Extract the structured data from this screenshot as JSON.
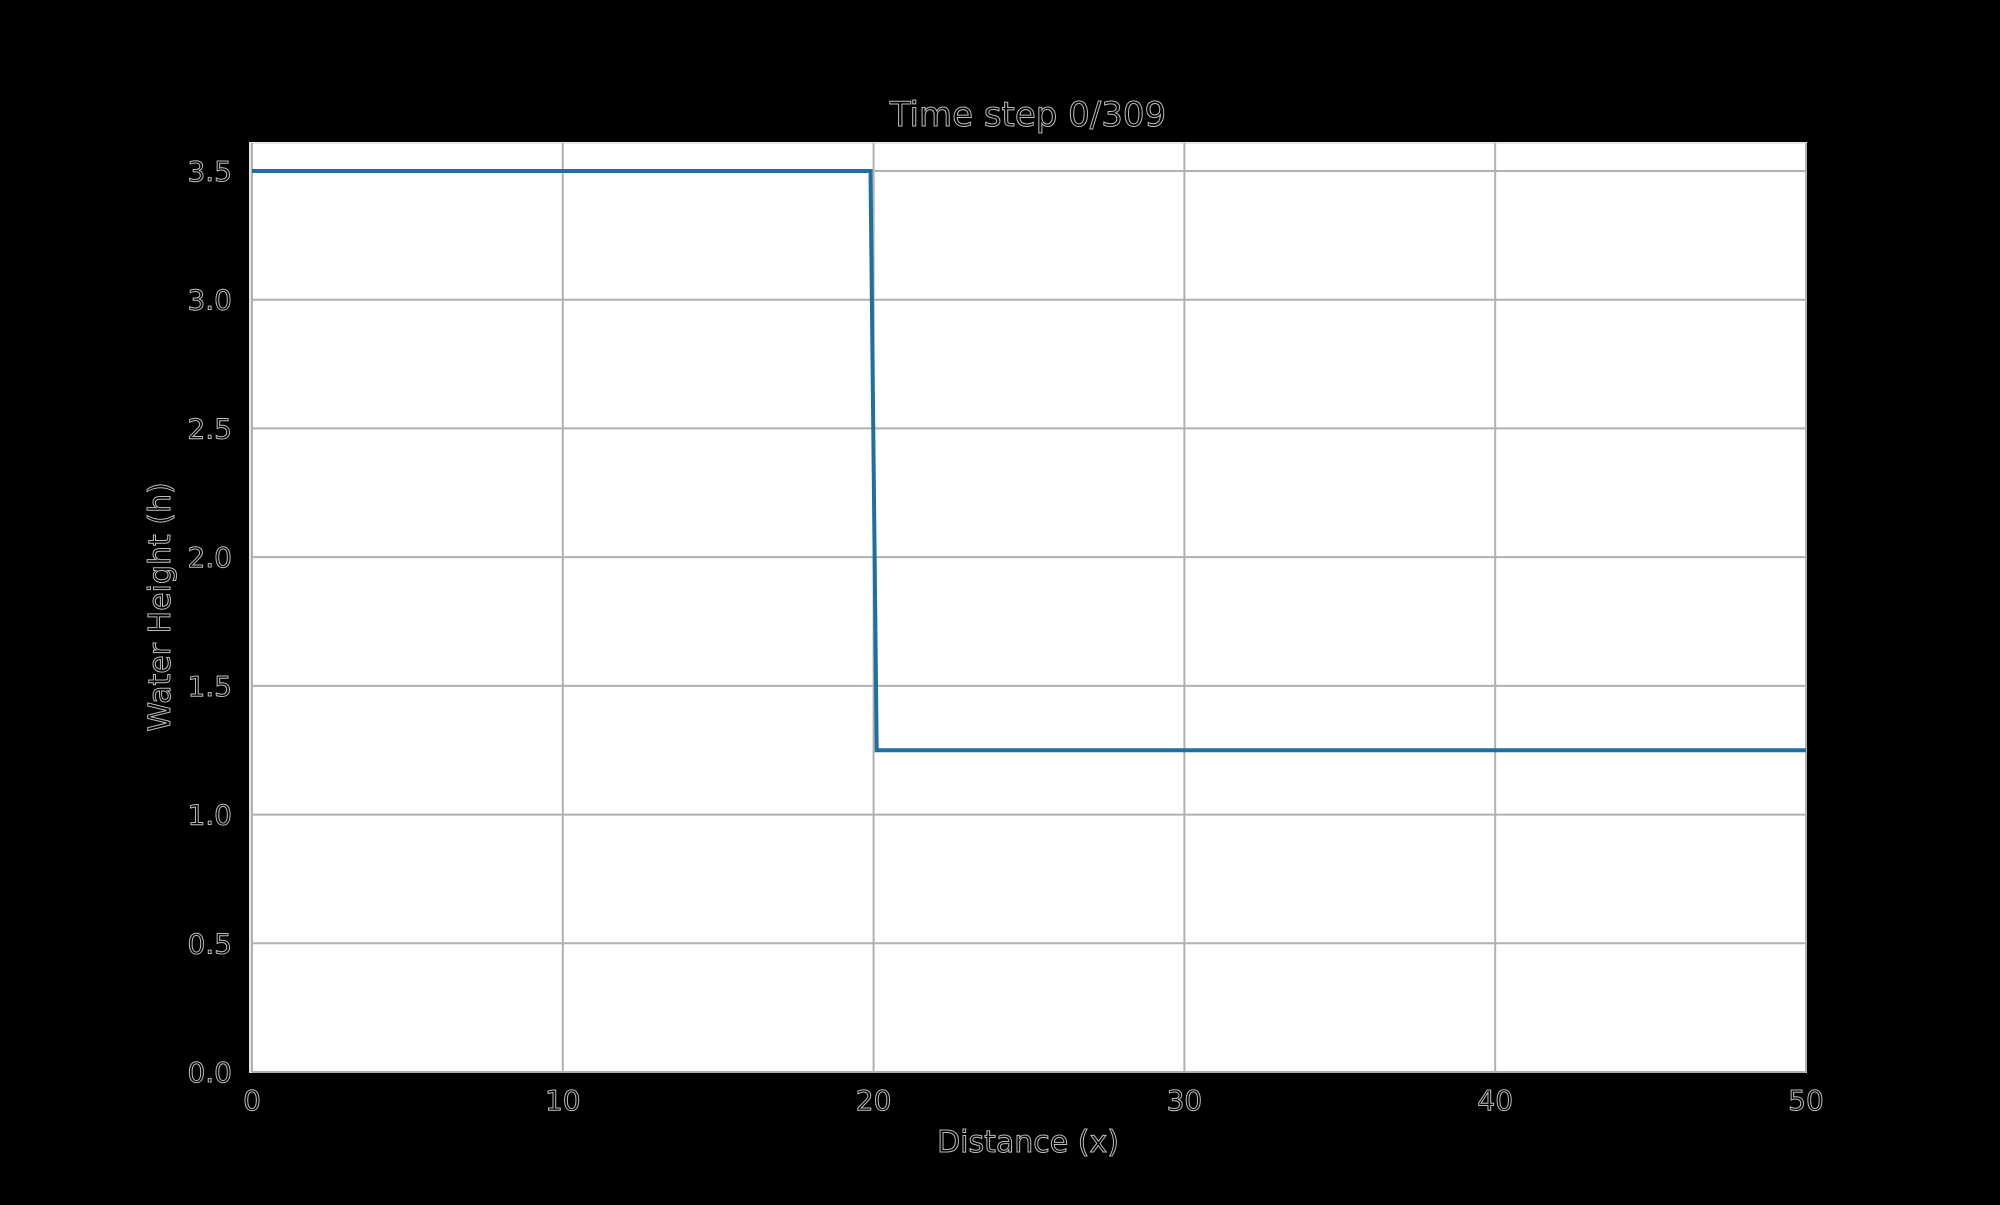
{
  "chart_data": {
    "type": "line",
    "title": "Time step 0/309",
    "xlabel": "Distance (x)",
    "ylabel": "Water Height (h)",
    "xlim": [
      0,
      50
    ],
    "ylim": [
      0,
      3.5
    ],
    "xticks": [
      0,
      10,
      20,
      30,
      40,
      50
    ],
    "yticks": [
      0.0,
      0.5,
      1.0,
      1.5,
      2.0,
      2.5,
      3.0,
      3.5
    ],
    "xtick_labels": [
      "0",
      "10",
      "20",
      "30",
      "40",
      "50"
    ],
    "ytick_labels": [
      "0.0",
      "0.5",
      "1.0",
      "1.5",
      "2.0",
      "2.5",
      "3.0",
      "3.5"
    ],
    "grid": true,
    "series": [
      {
        "color": "#1f6f9f",
        "x": [
          0,
          19.9,
          20.1,
          50
        ],
        "y": [
          3.5,
          3.5,
          1.25,
          1.25
        ]
      }
    ]
  }
}
